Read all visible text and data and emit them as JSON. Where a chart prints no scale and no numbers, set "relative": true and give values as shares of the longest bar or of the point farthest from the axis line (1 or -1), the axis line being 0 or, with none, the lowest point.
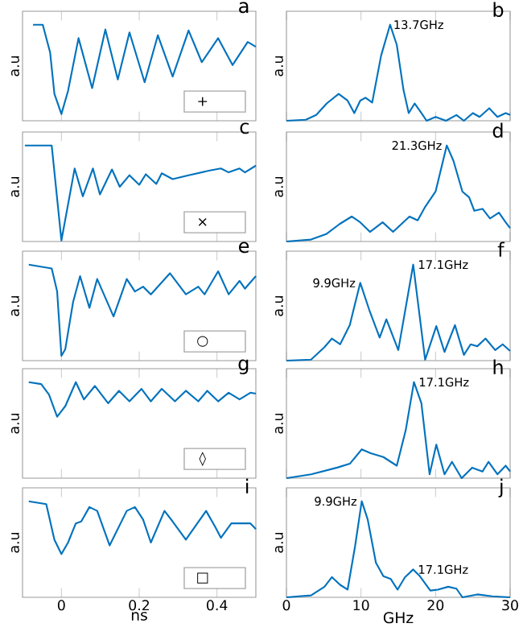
{
  "chart_data": [
    {
      "type": "line",
      "title": "a",
      "ylabel": "a.u",
      "relative": true,
      "xlim": [
        -0.1,
        0.5
      ],
      "xticks": [
        0,
        0.2,
        0.4
      ],
      "tick_labels": false,
      "annotations": [
        "+"
      ],
      "x": [
        -0.073,
        -0.048,
        -0.029,
        -0.018,
        0,
        0.017,
        0.044,
        0.079,
        0.113,
        0.145,
        0.175,
        0.214,
        0.248,
        0.286,
        0.327,
        0.361,
        0.403,
        0.44,
        0.479,
        0.5
      ],
      "series": [
        {
          "color": "#0072bd",
          "values": [
            1,
            1,
            0.71,
            0.28,
            0.07,
            0.31,
            0.86,
            0.34,
            0.95,
            0.43,
            0.92,
            0.4,
            0.89,
            0.46,
            0.94,
            0.61,
            0.86,
            0.58,
            0.82,
            0.77
          ]
        }
      ]
    },
    {
      "type": "line",
      "title": "b",
      "ylabel": "a.u",
      "relative": true,
      "xlim": [
        0,
        30
      ],
      "xticks": [
        0,
        10,
        20,
        30
      ],
      "tick_labels": false,
      "annotations": [
        {
          "text": "13.7GHz",
          "x": 13.7,
          "y": 1
        }
      ],
      "x": [
        0,
        2.6,
        4,
        5.4,
        7,
        8.2,
        9.1,
        9.9,
        10.6,
        11.5,
        12.7,
        13.9,
        14.8,
        15.7,
        16.4,
        17.2,
        18.1,
        18.8,
        20,
        21.4,
        22.8,
        23.8,
        25,
        25.9,
        27.2,
        28.3,
        29.4,
        30
      ],
      "series": [
        {
          "color": "#0072bd",
          "values": [
            0,
            0.01,
            0.06,
            0.18,
            0.28,
            0.21,
            0.08,
            0.21,
            0.24,
            0.19,
            0.68,
            1,
            0.79,
            0.32,
            0.08,
            0.18,
            0.08,
            0,
            0.04,
            0,
            0.06,
            0,
            0.08,
            0.04,
            0.13,
            0.04,
            0.08,
            0.06
          ]
        }
      ]
    },
    {
      "type": "line",
      "title": "c",
      "ylabel": "a.u",
      "relative": true,
      "xlim": [
        -0.1,
        0.5
      ],
      "xticks": [
        0,
        0.2,
        0.4
      ],
      "tick_labels": false,
      "annotations": [
        "×"
      ],
      "x": [
        -0.094,
        -0.025,
        0,
        0.034,
        0.055,
        0.081,
        0.099,
        0.13,
        0.15,
        0.175,
        0.2,
        0.217,
        0.244,
        0.258,
        0.286,
        0.327,
        0.382,
        0.41,
        0.43,
        0.458,
        0.472,
        0.5
      ],
      "series": [
        {
          "color": "#0072bd",
          "values": [
            1,
            1,
            0.01,
            0.76,
            0.47,
            0.76,
            0.49,
            0.75,
            0.57,
            0.69,
            0.59,
            0.7,
            0.6,
            0.71,
            0.65,
            0.69,
            0.74,
            0.76,
            0.72,
            0.76,
            0.72,
            0.79
          ]
        }
      ]
    },
    {
      "type": "line",
      "title": "d",
      "ylabel": "a.u",
      "relative": true,
      "xlim": [
        0,
        30
      ],
      "xticks": [
        0,
        10,
        20,
        30
      ],
      "tick_labels": false,
      "annotations": [
        {
          "text": "21.3GHz",
          "x": 21.5,
          "y": 1
        }
      ],
      "x": [
        0,
        3.3,
        5.4,
        7.1,
        8.75,
        9.9,
        11.2,
        12.9,
        14.3,
        16.5,
        17.6,
        18.6,
        20,
        21.5,
        22.4,
        23.6,
        24.5,
        25.2,
        26.3,
        27.3,
        28.5,
        29.4,
        30
      ],
      "series": [
        {
          "color": "#0072bd",
          "values": [
            0,
            0.02,
            0.08,
            0.18,
            0.26,
            0.2,
            0.1,
            0.2,
            0.1,
            0.26,
            0.22,
            0.36,
            0.52,
            1,
            0.84,
            0.52,
            0.46,
            0.32,
            0.34,
            0.24,
            0.3,
            0.2,
            0.14
          ]
        }
      ]
    },
    {
      "type": "line",
      "title": "e",
      "ylabel": "a.u",
      "relative": true,
      "xlim": [
        -0.1,
        0.5
      ],
      "xticks": [
        0,
        0.2,
        0.4
      ],
      "tick_labels": false,
      "annotations": [
        "○"
      ],
      "x": [
        -0.084,
        -0.025,
        -0.011,
        0,
        0.01,
        0.03,
        0.048,
        0.072,
        0.092,
        0.134,
        0.168,
        0.189,
        0.21,
        0.23,
        0.279,
        0.32,
        0.352,
        0.368,
        0.403,
        0.43,
        0.458,
        0.472,
        0.5
      ],
      "series": [
        {
          "color": "#0072bd",
          "values": [
            1,
            0.96,
            0.72,
            0.05,
            0.12,
            0.61,
            0.88,
            0.55,
            0.85,
            0.46,
            0.85,
            0.72,
            0.77,
            0.69,
            0.91,
            0.69,
            0.77,
            0.69,
            0.93,
            0.69,
            0.83,
            0.75,
            0.88
          ]
        }
      ]
    },
    {
      "type": "line",
      "title": "f",
      "ylabel": "a.u",
      "relative": true,
      "xlim": [
        0,
        30
      ],
      "xticks": [
        0,
        10,
        20,
        30
      ],
      "tick_labels": false,
      "annotations": [
        {
          "text": "9.9GHz",
          "x": 9.9,
          "y": 0.81
        },
        {
          "text": "17.1GHz",
          "x": 17,
          "y": 1
        }
      ],
      "x": [
        0,
        3.3,
        5.1,
        6.1,
        7.2,
        8.5,
        9,
        9.9,
        11.1,
        12.5,
        13.4,
        15,
        17,
        18.6,
        20.1,
        21.2,
        22.6,
        23.8,
        24.7,
        25.6,
        26.7,
        28,
        29,
        30
      ],
      "series": [
        {
          "color": "#0072bd",
          "values": [
            0,
            0.01,
            0.14,
            0.23,
            0.17,
            0.37,
            0.53,
            0.81,
            0.53,
            0.24,
            0.43,
            0.11,
            1,
            0.01,
            0.36,
            0.09,
            0.37,
            0.06,
            0.17,
            0.15,
            0.23,
            0.11,
            0.17,
            0.1
          ]
        }
      ]
    },
    {
      "type": "line",
      "title": "g",
      "ylabel": "a.u",
      "relative": true,
      "xlim": [
        -0.1,
        0.5
      ],
      "xticks": [
        0,
        0.2,
        0.4
      ],
      "tick_labels": false,
      "annotations": [
        "◊"
      ],
      "x": [
        -0.084,
        -0.052,
        -0.032,
        -0.011,
        0.01,
        0.037,
        0.058,
        0.086,
        0.12,
        0.148,
        0.175,
        0.206,
        0.23,
        0.258,
        0.292,
        0.32,
        0.352,
        0.375,
        0.403,
        0.43,
        0.458,
        0.486,
        0.5
      ],
      "series": [
        {
          "color": "#0072bd",
          "values": [
            1,
            0.98,
            0.87,
            0.64,
            0.75,
            1,
            0.82,
            0.96,
            0.78,
            0.91,
            0.8,
            0.93,
            0.8,
            0.93,
            0.8,
            0.91,
            0.8,
            0.91,
            0.8,
            0.89,
            0.82,
            0.89,
            0.88
          ]
        }
      ]
    },
    {
      "type": "line",
      "title": "h",
      "ylabel": "a.u",
      "relative": true,
      "xlim": [
        0,
        30
      ],
      "xticks": [
        0,
        10,
        20,
        30
      ],
      "tick_labels": false,
      "annotations": [
        {
          "text": "17.1GHz",
          "x": 17.1,
          "y": 1
        }
      ],
      "x": [
        0,
        3.3,
        6.8,
        8.5,
        10.1,
        11.3,
        13,
        14.8,
        16,
        17.1,
        18.1,
        19.2,
        20.1,
        21.2,
        22.2,
        23.5,
        24.9,
        26.3,
        27.1,
        28.3,
        29.4,
        30
      ],
      "series": [
        {
          "color": "#0072bd",
          "values": [
            0,
            0.04,
            0.11,
            0.15,
            0.3,
            0.26,
            0.22,
            0.13,
            0.5,
            1,
            0.78,
            0.04,
            0.35,
            0.04,
            0.17,
            0,
            0.11,
            0.07,
            0.17,
            0.04,
            0.13,
            0.07
          ]
        }
      ]
    },
    {
      "type": "line",
      "title": "i",
      "ylabel": "a.u",
      "xlabel": "ns",
      "relative": true,
      "xlim": [
        -0.1,
        0.5
      ],
      "xticks": [
        0,
        0.2,
        0.4
      ],
      "tick_labels": "x",
      "annotations": [
        "□"
      ],
      "x": [
        -0.084,
        -0.039,
        -0.018,
        0,
        0.017,
        0.037,
        0.051,
        0.072,
        0.092,
        0.124,
        0.168,
        0.189,
        0.21,
        0.23,
        0.265,
        0.286,
        0.32,
        0.372,
        0.396,
        0.41,
        0.437,
        0.486,
        0.5
      ],
      "series": [
        {
          "color": "#0072bd",
          "values": [
            1,
            0.97,
            0.6,
            0.45,
            0.57,
            0.77,
            0.79,
            0.94,
            0.9,
            0.54,
            0.9,
            0.94,
            0.81,
            0.57,
            0.9,
            0.79,
            0.6,
            0.9,
            0.73,
            0.62,
            0.77,
            0.77,
            0.71
          ]
        }
      ]
    },
    {
      "type": "line",
      "title": "j",
      "ylabel": "a.u",
      "xlabel": "GHz",
      "relative": true,
      "xlim": [
        0,
        30
      ],
      "xticks": [
        0,
        10,
        20,
        30
      ],
      "tick_labels": "x",
      "annotations": [
        {
          "text": "9.9GHz",
          "x": 10.1,
          "y": 1
        },
        {
          "text": "17.1GHz",
          "x": 17,
          "y": 0.29
        }
      ],
      "x": [
        0,
        3.3,
        5.1,
        6.1,
        7.2,
        8.2,
        9.2,
        10.1,
        10.9,
        12,
        13,
        14,
        14.9,
        15.9,
        17,
        17.9,
        19.3,
        20.3,
        21.7,
        22.8,
        23.6,
        25.6,
        27.6,
        30
      ],
      "series": [
        {
          "color": "#0072bd",
          "values": [
            0,
            0.02,
            0.11,
            0.21,
            0.13,
            0.08,
            0.53,
            1,
            0.81,
            0.36,
            0.22,
            0.19,
            0.08,
            0.21,
            0.29,
            0.22,
            0.07,
            0.08,
            0.11,
            0.09,
            0,
            0.03,
            0.01,
            0
          ]
        }
      ]
    }
  ]
}
